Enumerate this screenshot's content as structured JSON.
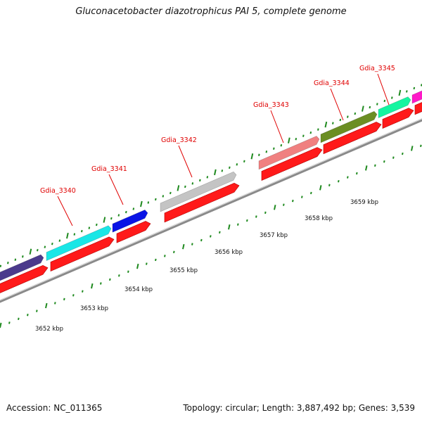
{
  "title": "Gluconacetobacter diazotrophicus PAI 5, complete genome",
  "accession": "Accession: NC_011365",
  "stats": "Topology: circular; Length: 3,887,492 bp; Genes: 3,539",
  "colors": {
    "background": "#ffffff",
    "backbone": "#8a8a8a",
    "cds_strand": "#ff1a1a",
    "ticks": "#1f8a1f",
    "gene_label": "#e00000",
    "kbp_label": "#111111"
  },
  "kbp_labels": [
    "3652 kbp",
    "3653 kbp",
    "3654 kbp",
    "3655 kbp",
    "3656 kbp",
    "3657 kbp",
    "3658 kbp",
    "3659 kbp"
  ],
  "genes": [
    {
      "name": "",
      "color": "#4b3a8c"
    },
    {
      "name": "Gdia_3340",
      "color": "#19e6e6"
    },
    {
      "name": "Gdia_3341",
      "color": "#0a14e6"
    },
    {
      "name": "Gdia_3342",
      "color": "#c4c4c4"
    },
    {
      "name": "Gdia_3343",
      "color": "#f08080"
    },
    {
      "name": "Gdia_3344",
      "color": "#6b8e23"
    },
    {
      "name": "Gdia_3345",
      "color": "#14f5a0"
    },
    {
      "name": "",
      "color": "#ff19c8"
    }
  ]
}
